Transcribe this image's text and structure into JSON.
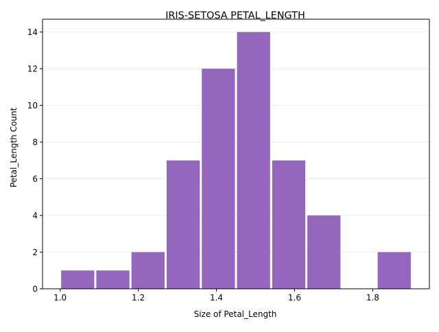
{
  "chart_data": {
    "type": "bar",
    "title": "IRIS-SETOSA PETAL_LENGTH",
    "xlabel": "Size of Petal_Length",
    "ylabel": "Petal_Length Count",
    "xlim": [
      0.955,
      1.945
    ],
    "ylim": [
      0,
      14.7
    ],
    "bins": [
      {
        "start": 1.0,
        "end": 1.09,
        "count": 1
      },
      {
        "start": 1.09,
        "end": 1.18,
        "count": 1
      },
      {
        "start": 1.18,
        "end": 1.27,
        "count": 2
      },
      {
        "start": 1.27,
        "end": 1.36,
        "count": 7
      },
      {
        "start": 1.36,
        "end": 1.45,
        "count": 12
      },
      {
        "start": 1.45,
        "end": 1.54,
        "count": 14
      },
      {
        "start": 1.54,
        "end": 1.63,
        "count": 7
      },
      {
        "start": 1.63,
        "end": 1.72,
        "count": 4
      },
      {
        "start": 1.72,
        "end": 1.81,
        "count": 0
      },
      {
        "start": 1.81,
        "end": 1.9,
        "count": 2
      }
    ],
    "x_ticks": [
      1.0,
      1.2,
      1.4,
      1.6,
      1.8
    ],
    "x_tick_labels": [
      "1.0",
      "1.2",
      "1.4",
      "1.6",
      "1.8"
    ],
    "y_ticks": [
      0,
      2,
      4,
      6,
      8,
      10,
      12,
      14
    ],
    "y_tick_labels": [
      "0",
      "2",
      "4",
      "6",
      "8",
      "10",
      "12",
      "14"
    ],
    "bar_color": "#9467bd",
    "grid": "y-axis horizontal, light"
  }
}
